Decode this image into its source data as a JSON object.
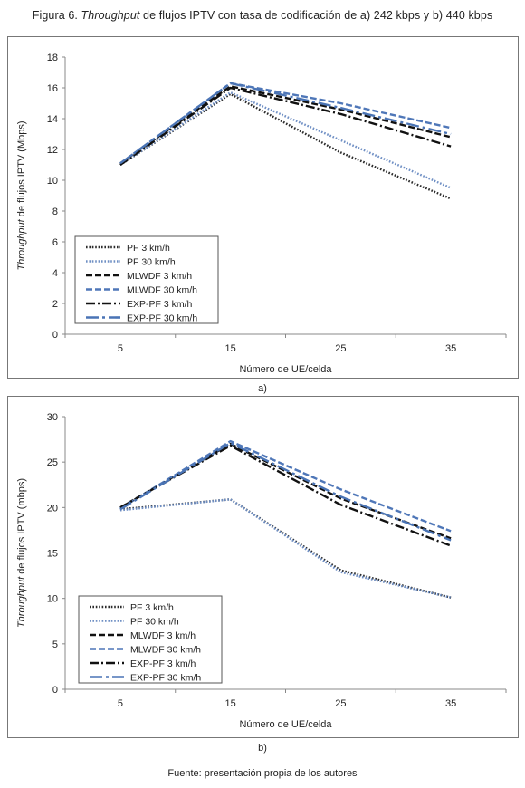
{
  "figure": {
    "title_prefix": "Figura 6. ",
    "title_italic": "Throughput",
    "title_rest": " de flujos IPTV con tasa de codificación de a) 242 kbps y b) 440 kbps",
    "source": "Fuente: presentación propia de los autores"
  },
  "styles": {
    "PF 3 km/h": {
      "color": "#2b2b2b",
      "dash": "dot"
    },
    "PF 30 km/h": {
      "color": "#6f8fc4",
      "dash": "dot"
    },
    "MLWDF 3 km/h": {
      "color": "#111111",
      "dash": "dash"
    },
    "MLWDF 30 km/h": {
      "color": "#4f77b8",
      "dash": "dash"
    },
    "EXP-PF 3 km/h": {
      "color": "#111111",
      "dash": "dashdot"
    },
    "EXP-PF 30 km/h": {
      "color": "#4a74b5",
      "dash": "longdash"
    }
  },
  "chart_data": [
    {
      "type": "line",
      "panel_label": "a)",
      "ylabel_italic": "Throughput",
      "ylabel_rest": " de flujos IPTV (Mbps)",
      "xlabel": "Número de UE/celda",
      "categories": [
        "5",
        "15",
        "25",
        "35"
      ],
      "ylim": [
        0,
        18
      ],
      "yticks": [
        "0",
        "2",
        "4",
        "6",
        "8",
        "10",
        "12",
        "14",
        "16",
        "18"
      ],
      "grid": false,
      "legend": "inside lower-left",
      "series": [
        {
          "name": "PF 3 km/h",
          "values": [
            11.0,
            15.6,
            11.8,
            8.8
          ]
        },
        {
          "name": "PF 30 km/h",
          "values": [
            11.0,
            15.7,
            12.6,
            9.5
          ]
        },
        {
          "name": "MLWDF 3 km/h",
          "values": [
            11.1,
            16.1,
            14.6,
            12.8
          ]
        },
        {
          "name": "MLWDF 30 km/h",
          "values": [
            11.1,
            16.3,
            15.0,
            13.4
          ]
        },
        {
          "name": "EXP-PF 3 km/h",
          "values": [
            11.0,
            16.0,
            14.3,
            12.2
          ]
        },
        {
          "name": "EXP-PF 30 km/h",
          "values": [
            11.1,
            16.3,
            14.7,
            13.0
          ]
        }
      ]
    },
    {
      "type": "line",
      "panel_label": "b)",
      "ylabel_italic": "Throughput",
      "ylabel_rest": " de flujos IPTV (mbps)",
      "xlabel": "Número de UE/celda",
      "categories": [
        "5",
        "15",
        "25",
        "35"
      ],
      "ylim": [
        0,
        30
      ],
      "yticks": [
        "0",
        "5",
        "10",
        "15",
        "20",
        "25",
        "30"
      ],
      "grid": false,
      "legend": "inside lower-left",
      "series": [
        {
          "name": "PF 3 km/h",
          "values": [
            19.8,
            20.9,
            13.1,
            10.1
          ]
        },
        {
          "name": "PF 30 km/h",
          "values": [
            19.7,
            20.9,
            12.9,
            10.1
          ]
        },
        {
          "name": "MLWDF 3 km/h",
          "values": [
            20.0,
            27.0,
            21.0,
            16.6
          ]
        },
        {
          "name": "MLWDF 30 km/h",
          "values": [
            19.9,
            27.3,
            22.0,
            17.4
          ]
        },
        {
          "name": "EXP-PF 3 km/h",
          "values": [
            20.0,
            26.8,
            20.3,
            15.8
          ]
        },
        {
          "name": "EXP-PF 30 km/h",
          "values": [
            19.8,
            27.1,
            21.2,
            16.4
          ]
        }
      ]
    }
  ]
}
